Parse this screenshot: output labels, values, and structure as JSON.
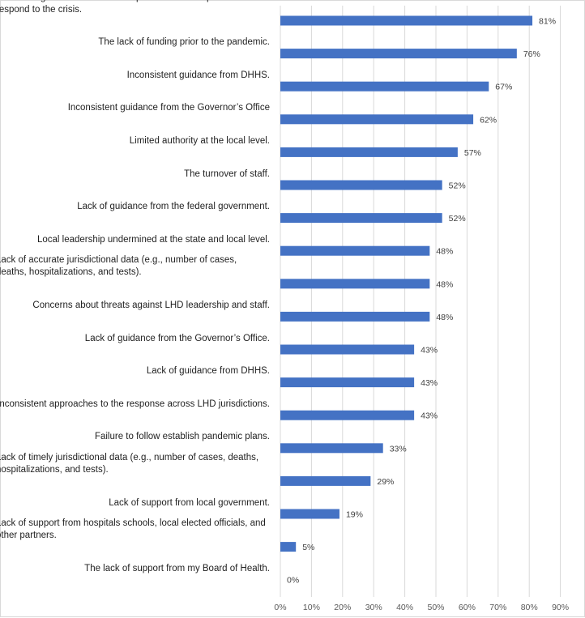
{
  "chart_data": {
    "type": "bar",
    "orientation": "horizontal",
    "title": "",
    "xlabel": "",
    "ylabel": "",
    "xlim": [
      0,
      90
    ],
    "ticks": [
      "0%",
      "10%",
      "20%",
      "30%",
      "40%",
      "50%",
      "60%",
      "70%",
      "80%",
      "90%"
    ],
    "grid": true,
    "bar_color": "#4472c4",
    "categories": [
      "The shortage of staff with the competencies and expertise to respond to the crisis.",
      "The lack of funding prior to the pandemic.",
      "Inconsistent guidance from DHHS.",
      "Inconsistent guidance from the Governor’s Office",
      "Limited authority at the local level.",
      "The turnover of staff.",
      "Lack of guidance from the federal government.",
      "Local leadership undermined at the state and local level.",
      "Lack of accurate jurisdictional data (e.g., number of cases, deaths, hospitalizations, and tests).",
      "Concerns about threats against LHD leadership and staff.",
      "Lack of guidance from the Governor’s Office.",
      "Lack of guidance from DHHS.",
      "Inconsistent approaches to the response across LHD jurisdictions.",
      "Failure to follow establish pandemic plans.",
      "Lack of timely jurisdictional data (e.g., number of cases, deaths, hospitalizations, and tests).",
      "Lack of support from local government.",
      "Lack of support from hospitals schools, local elected officials, and other partners.",
      "The lack of support from my Board of Health."
    ],
    "values": [
      81,
      76,
      67,
      62,
      57,
      52,
      52,
      48,
      48,
      48,
      43,
      43,
      43,
      33,
      29,
      19,
      5,
      0
    ],
    "value_labels": [
      "81%",
      "76%",
      "67%",
      "62%",
      "57%",
      "52%",
      "52%",
      "48%",
      "48%",
      "48%",
      "43%",
      "43%",
      "43%",
      "33%",
      "29%",
      "19%",
      "5%",
      "0%"
    ]
  }
}
